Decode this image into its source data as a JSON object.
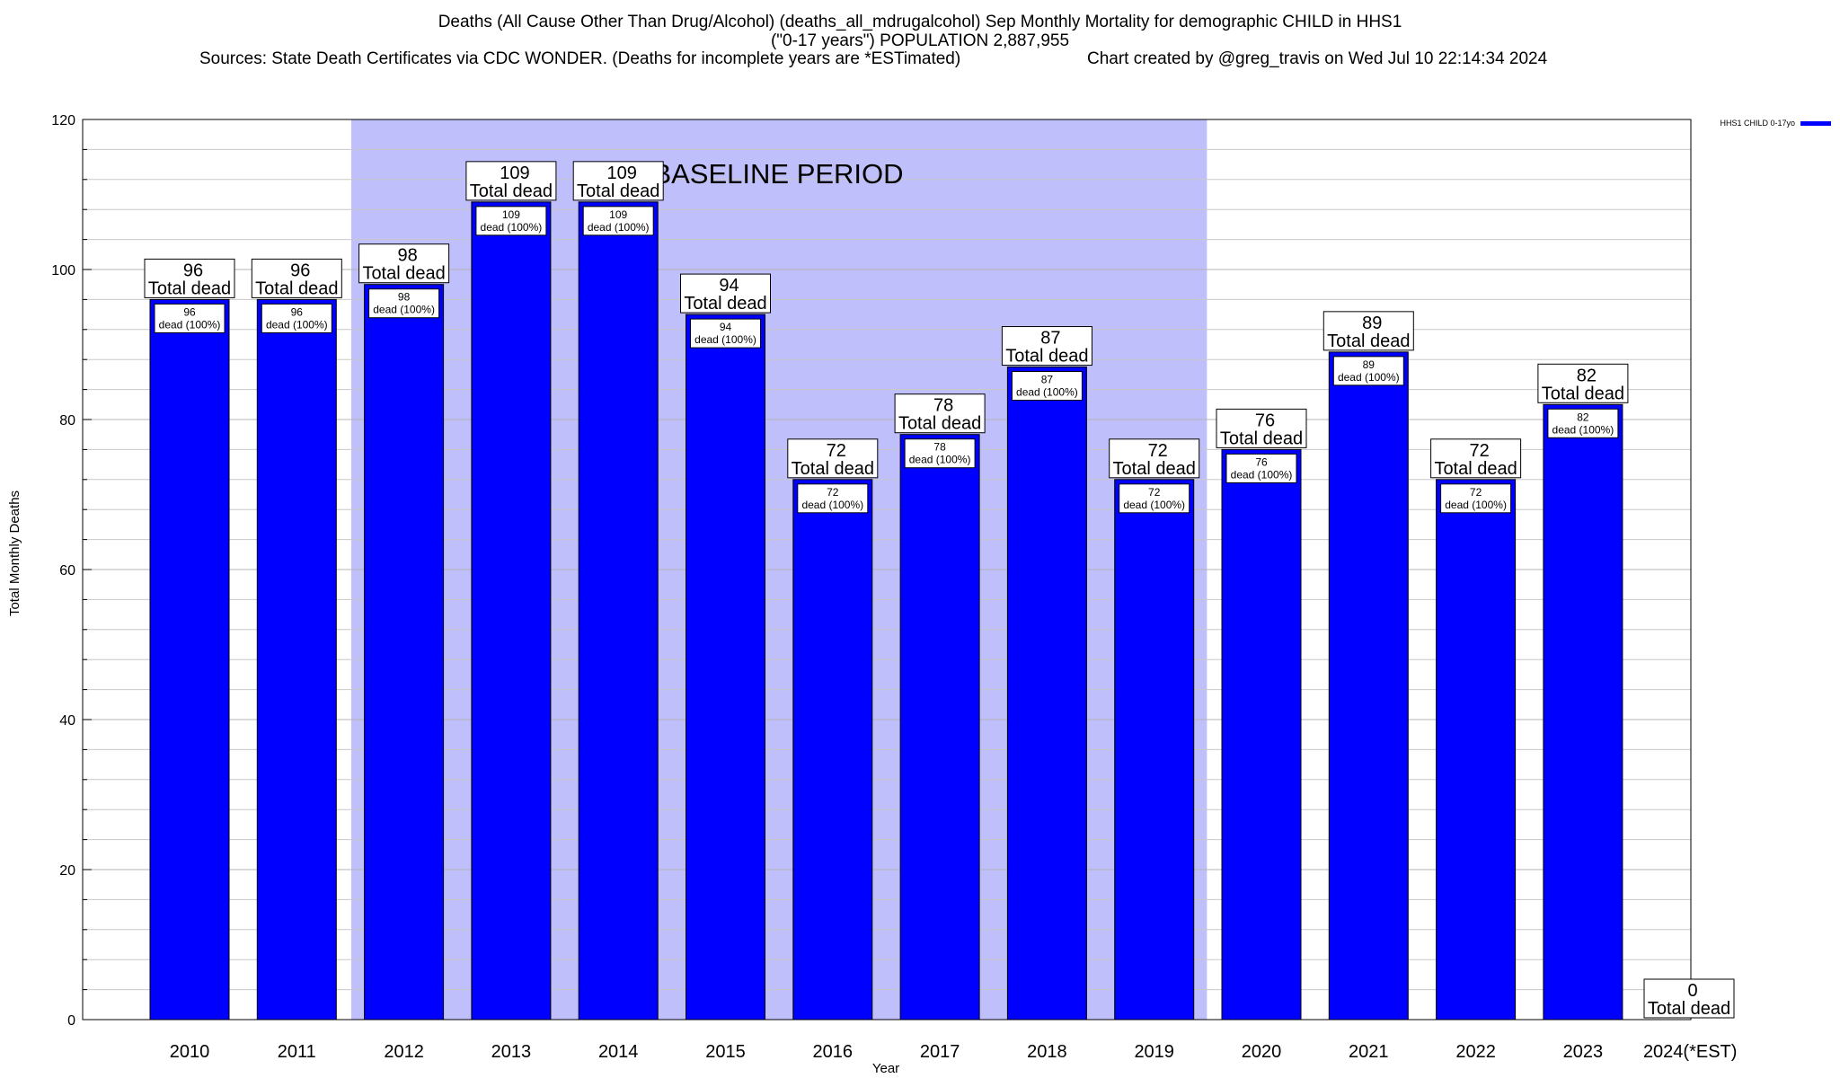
{
  "chart_data": {
    "type": "bar",
    "title_lines": [
      "Deaths (All Cause Other Than Drug/Alcohol) (deaths_all_mdrugalcohol) Sep Monthly Mortality for demographic CHILD in HHS1",
      "(\"0-17 years\") POPULATION 2,887,955"
    ],
    "sources_text": "Sources: State Death Certificates via CDC WONDER. (Deaths for incomplete years are *ESTimated)",
    "credit_text": "Chart created by @greg_travis on Wed Jul 10 22:14:34 2024",
    "categories": [
      "2010",
      "2011",
      "2012",
      "2013",
      "2014",
      "2015",
      "2016",
      "2017",
      "2018",
      "2019",
      "2020",
      "2021",
      "2022",
      "2023",
      "2024(*EST)"
    ],
    "series": [
      {
        "name": "HHS1 CHILD 0-17yo",
        "color": "#0000ff",
        "values": [
          96,
          96,
          98,
          109,
          109,
          94,
          72,
          78,
          87,
          72,
          76,
          89,
          72,
          82,
          0
        ]
      }
    ],
    "total_label_suffix": "Total dead",
    "inner_label_suffix": "dead (100%)",
    "xlabel": "Year",
    "ylabel": "Total Monthly Deaths",
    "ylim": [
      0,
      120
    ],
    "y_major_ticks": [
      0,
      20,
      40,
      60,
      80,
      100,
      120
    ],
    "y_minor_step": 4,
    "grid": true,
    "baseline_band": {
      "label": "BASELINE PERIOD",
      "from": "2012",
      "to": "2019",
      "color": "#bfbffb"
    },
    "legend": {
      "position": "top-right",
      "label": "HHS1 CHILD 0-17yo"
    },
    "colors": {
      "bar": "#0000ff",
      "band": "#bfbffb",
      "grid": "#c8c8c8",
      "text": "#000000"
    }
  }
}
